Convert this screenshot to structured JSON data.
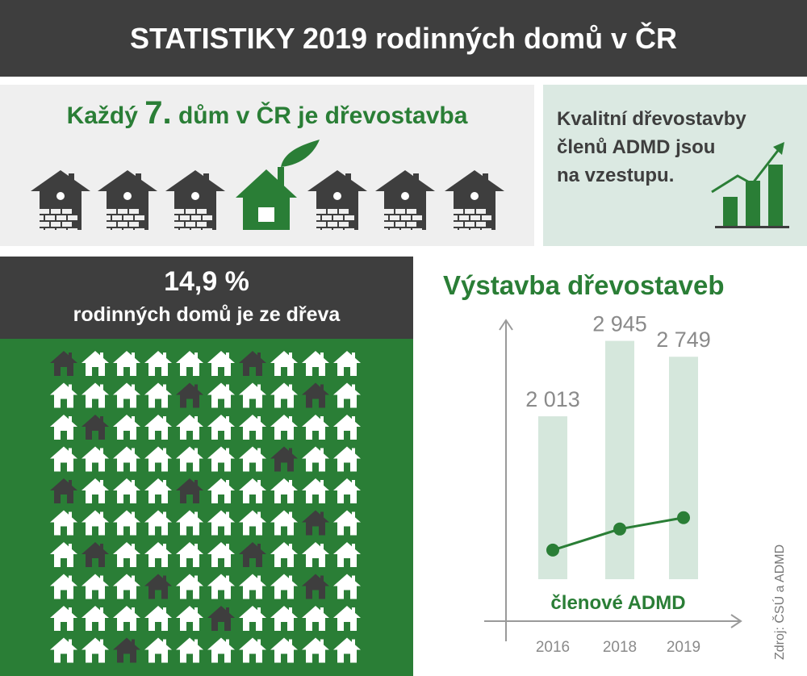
{
  "header": {
    "title": "STATISTIKY 2019 rodinných domů v ČR"
  },
  "top_left": {
    "heading_before": "Každý ",
    "heading_number": "7.",
    "heading_after": " dům v ČR je dřevostavba",
    "houses": [
      "brick",
      "brick",
      "brick",
      "wood",
      "brick",
      "brick",
      "brick"
    ]
  },
  "top_right": {
    "line1": "Kvalitní dřevostavby",
    "line2": "členů ADMD jsou",
    "line3": "na vzestupu.",
    "icon": "growth-chart-icon"
  },
  "panel": {
    "percent": "14,9 %",
    "subtitle": "rodinných domů je ze dřeva",
    "grid_dark": [
      [
        0,
        0
      ],
      [
        0,
        6
      ],
      [
        1,
        4
      ],
      [
        1,
        8
      ],
      [
        2,
        1
      ],
      [
        3,
        7
      ],
      [
        4,
        0
      ],
      [
        4,
        4
      ],
      [
        5,
        8
      ],
      [
        6,
        1
      ],
      [
        6,
        6
      ],
      [
        7,
        3
      ],
      [
        7,
        8
      ],
      [
        8,
        5
      ],
      [
        9,
        2
      ]
    ],
    "grid_rows": 10,
    "grid_cols": 10
  },
  "chart_data": {
    "type": "bar",
    "title": "Výstavba dřevostaveb",
    "categories": [
      "2016",
      "2018",
      "2019"
    ],
    "series": [
      {
        "values": [
          2013,
          2945,
          2749
        ],
        "labels": [
          "2 013",
          "2 945",
          "2 749"
        ]
      },
      {
        "name": "členové ADMD",
        "type": "line",
        "values": [
          360,
          620,
          760
        ]
      }
    ],
    "ylim": [
      0,
      3200
    ],
    "grid": false,
    "colors": {
      "bar": "#d5e7dc",
      "line": "#2a7e36",
      "text": "#8a8a8a"
    }
  },
  "source": "Zdroj: ČSÚ a ADMD",
  "colors": {
    "green": "#2a7e36",
    "dark": "#3e3e3e",
    "light_gray": "#efefef",
    "mint": "#dbe9e2"
  }
}
